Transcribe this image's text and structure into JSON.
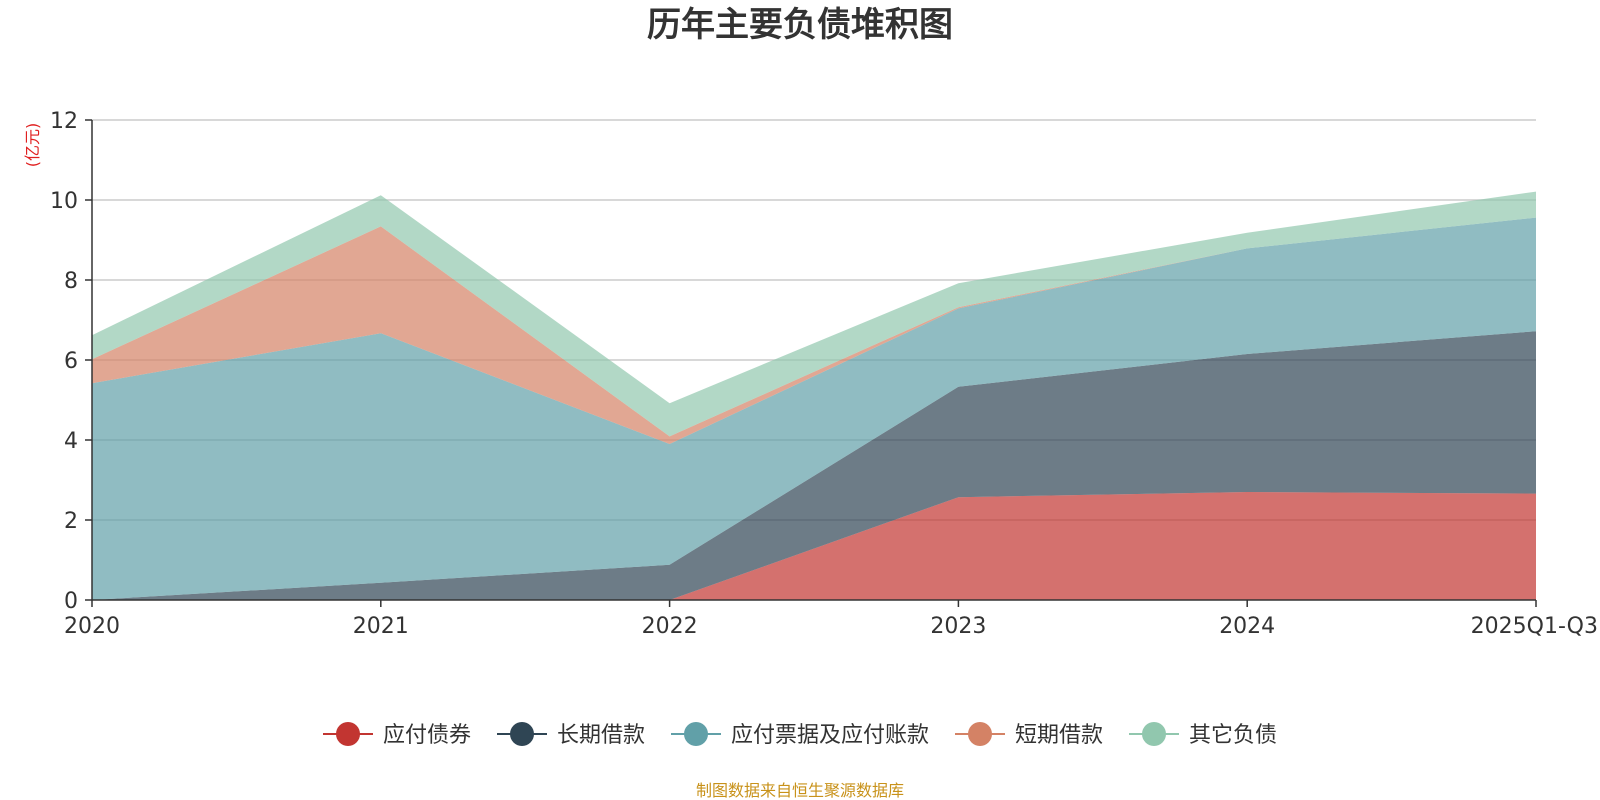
{
  "chart_data": {
    "type": "area",
    "stacked": true,
    "title": "历年主要负债堆积图",
    "ylabel": "(亿元)",
    "xlabel": "",
    "ylim": [
      0,
      12
    ],
    "yticks": [
      0,
      2,
      4,
      6,
      8,
      10,
      12
    ],
    "grid": true,
    "legend_position": "bottom-center",
    "categories": [
      "2020",
      "2021",
      "2022",
      "2023",
      "2024",
      "2025Q1-Q3"
    ],
    "series": [
      {
        "name": "应付债券",
        "color": "#c23531",
        "values": [
          0,
          0,
          0,
          2.57,
          2.7,
          2.66
        ]
      },
      {
        "name": "长期借款",
        "color": "#2f4554",
        "values": [
          0,
          0.43,
          0.88,
          2.76,
          3.45,
          4.06
        ]
      },
      {
        "name": "应付票据及应付账款",
        "color": "#61a0a8",
        "values": [
          5.42,
          6.24,
          3.02,
          1.96,
          2.64,
          2.84
        ]
      },
      {
        "name": "短期借款",
        "color": "#d48265",
        "values": [
          0.6,
          2.67,
          0.19,
          0.03,
          0,
          0
        ]
      },
      {
        "name": "其它负债",
        "color": "#91c7ae",
        "values": [
          0.6,
          0.78,
          0.83,
          0.6,
          0.39,
          0.65
        ]
      }
    ],
    "source": "制图数据来自恒生聚源数据库"
  }
}
